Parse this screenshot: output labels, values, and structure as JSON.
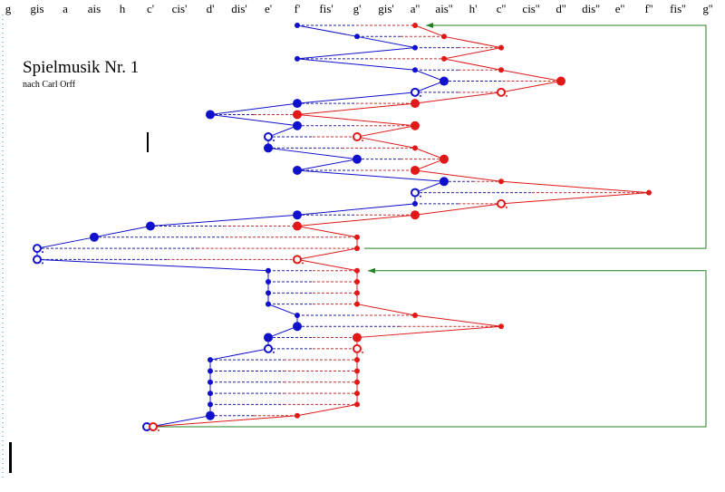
{
  "title": "Spielmusik Nr. 1",
  "subtitle": "nach Carl Orff",
  "note_axis": [
    "g",
    "gis",
    "a",
    "ais",
    "h",
    "c'",
    "cis'",
    "d'",
    "dis'",
    "e'",
    "f'",
    "fis'",
    "g'",
    "gis'",
    "a''",
    "ais''",
    "h'",
    "c''",
    "cis''",
    "d''",
    "dis''",
    "e''",
    "f''",
    "fis''",
    "g''"
  ],
  "colors": {
    "blue": "#1010cc",
    "red": "#e01818",
    "green": "#208020",
    "blue_dash": "#2020a0",
    "red_dash": "#c03030"
  },
  "chart_data": {
    "type": "scatter",
    "x_categories": [
      "g",
      "gis",
      "a",
      "ais",
      "h",
      "c'",
      "cis'",
      "d'",
      "dis'",
      "e'",
      "f'",
      "fis'",
      "g'",
      "gis'",
      "a''",
      "ais''",
      "h'",
      "c''",
      "cis''",
      "d''",
      "dis''",
      "e''",
      "f''",
      "fis''",
      "g''"
    ],
    "events": [
      {
        "b": "f'",
        "r": "a''",
        "bs": "s",
        "rs": "s"
      },
      {
        "b": "g'",
        "r": "ais''",
        "bs": "s",
        "rs": "s"
      },
      {
        "b": "a''",
        "r": "c''",
        "bs": "s",
        "rs": "s"
      },
      {
        "b": "f'",
        "r": "ais''",
        "bs": "s",
        "rs": "s"
      },
      {
        "b": "a''",
        "r": "c''",
        "bs": "s",
        "rs": "s"
      },
      {
        "b": "ais''",
        "r": "d''",
        "bs": "m",
        "rs": "m"
      },
      {
        "b": "a''",
        "r": "c''",
        "bs": "o",
        "rs": "o"
      },
      {
        "b": "f'",
        "r": "a''",
        "bs": "m",
        "rs": "m"
      },
      {
        "b": "d'",
        "r": "f'",
        "bs": "m",
        "rs": "m"
      },
      {
        "b": "f'",
        "r": "a''",
        "bs": "m",
        "rs": "m"
      },
      {
        "b": "e'",
        "r": "g'",
        "bs": "o",
        "rs": "o"
      },
      {
        "b": "e'",
        "r": "a''",
        "bs": "m",
        "rs": "s"
      },
      {
        "b": "g'",
        "r": "ais''",
        "bs": "m",
        "rs": "m"
      },
      {
        "b": "f'",
        "r": "a''",
        "bs": "m",
        "rs": "m"
      },
      {
        "b": "ais''",
        "r": "c''",
        "bs": "m",
        "rs": "s"
      },
      {
        "b": "a''",
        "r": "f''",
        "bs": "o",
        "rs": "s"
      },
      {
        "b": "a''",
        "r": "c''",
        "bs": "s",
        "rs": "o"
      },
      {
        "b": "f'",
        "r": "a''",
        "bs": "m",
        "rs": "m"
      },
      {
        "b": "c'",
        "r": "f'",
        "bs": "m",
        "rs": "m"
      },
      {
        "b": "ais",
        "r": "g'",
        "bs": "m",
        "rs": "s"
      },
      {
        "b": "gis",
        "r": "g'",
        "bs": "o",
        "rs": "s"
      },
      {
        "b": "gis",
        "r": "f'",
        "bs": "o",
        "rs": "o"
      },
      {
        "b": "e'",
        "r": "g'",
        "bs": "s",
        "rs": "s"
      },
      {
        "b": "e'",
        "r": "g'",
        "bs": "s",
        "rs": "s"
      },
      {
        "b": "e'",
        "r": "g'",
        "bs": "s",
        "rs": "s"
      },
      {
        "b": "e'",
        "r": "g'",
        "bs": "s",
        "rs": "s"
      },
      {
        "b": "f'",
        "r": "a''",
        "bs": "s",
        "rs": "s"
      },
      {
        "b": "f'",
        "r": "c''",
        "bs": "m",
        "rs": "s"
      },
      {
        "b": "e'",
        "r": "g'",
        "bs": "m",
        "rs": "m"
      },
      {
        "b": "e'",
        "r": "g'",
        "bs": "o",
        "rs": "o"
      },
      {
        "b": "d'",
        "r": "g'",
        "bs": "s",
        "rs": "s"
      },
      {
        "b": "d'",
        "r": "g'",
        "bs": "s",
        "rs": "s"
      },
      {
        "b": "d'",
        "r": "g'",
        "bs": "s",
        "rs": "s"
      },
      {
        "b": "d'",
        "r": "g'",
        "bs": "s",
        "rs": "s"
      },
      {
        "b": "d'",
        "r": "g'",
        "bs": "s",
        "rs": "s"
      },
      {
        "b": "d'",
        "r": "f'",
        "bs": "m",
        "rs": "s"
      },
      {
        "b": "c'",
        "r": "c'",
        "bs": "o",
        "rs": "o"
      }
    ],
    "repeat_arrows": [
      {
        "from_event": 20,
        "to_event": 0
      },
      {
        "from_event": 36,
        "to_event": 22
      }
    ]
  }
}
